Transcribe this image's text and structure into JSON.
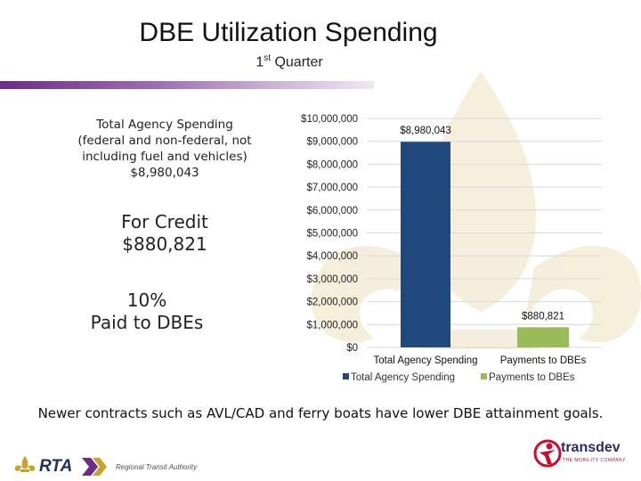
{
  "slide": {
    "title": "DBE Utilization Spending",
    "subtitle_main": "1",
    "subtitle_sup": "st",
    "subtitle_rest": " Quarter"
  },
  "left_panel": {
    "total_line1": "Total Agency Spending",
    "total_line2": "(federal and non-federal, not",
    "total_line3": "including fuel and vehicles)",
    "total_amount": "$8,980,043",
    "credit_label": "For Credit",
    "credit_amount": "$880,821",
    "paid_percent": "10%",
    "paid_label": "Paid to DBEs"
  },
  "footer_note": "Newer contracts such as AVL/CAD and ferry boats have lower DBE attainment goals.",
  "logos": {
    "rta_word": "RTA",
    "rta_name": "Regional Transit Authority",
    "transdev_name": "transdev",
    "transdev_tagline": "THE MOBILITY COMPANY"
  },
  "colors": {
    "total_bar": "#1f497d",
    "dbe_bar": "#9bbb59",
    "accent_purple": "#6b2d86",
    "watermark": "#f5ecd6",
    "transdev_red": "#c8102e"
  },
  "chart_data": {
    "type": "bar",
    "categories": [
      "Total Agency Spending",
      "Payments to DBEs"
    ],
    "series": [
      {
        "name": "Total Agency Spending",
        "values": [
          8980043,
          null
        ],
        "color": "#1f497d"
      },
      {
        "name": "Payments to DBEs",
        "values": [
          null,
          880821
        ],
        "color": "#9bbb59"
      }
    ],
    "data_labels": [
      "$8,980,043",
      "$880,821"
    ],
    "ylim": [
      0,
      10000000
    ],
    "yticks": [
      0,
      1000000,
      2000000,
      3000000,
      4000000,
      5000000,
      6000000,
      7000000,
      8000000,
      9000000,
      10000000
    ],
    "ytick_labels": [
      "$0",
      "$1,000,000",
      "$2,000,000",
      "$3,000,000",
      "$4,000,000",
      "$5,000,000",
      "$6,000,000",
      "$7,000,000",
      "$8,000,000",
      "$9,000,000",
      "$10,000,000"
    ],
    "legend": [
      "Total Agency Spending",
      "Payments to DBEs"
    ],
    "legend_position": "bottom",
    "grid": true
  }
}
